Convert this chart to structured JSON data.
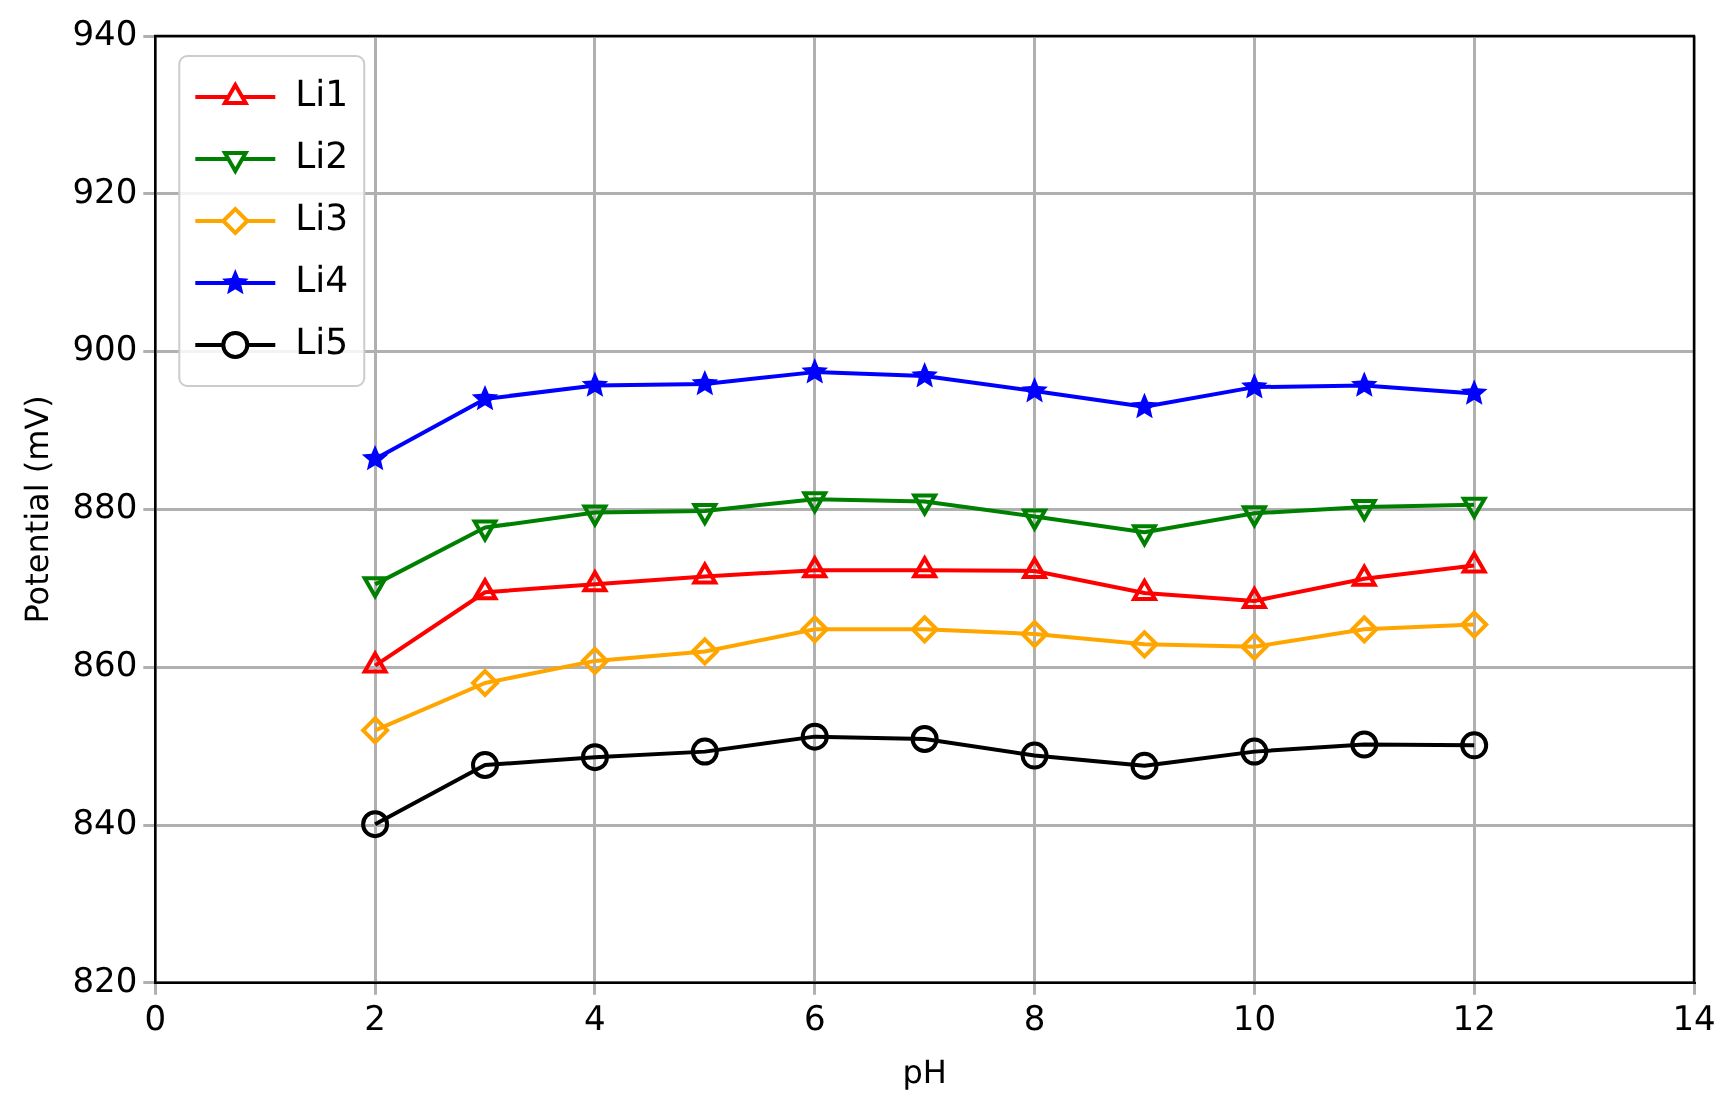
{
  "chart_data": {
    "type": "line",
    "xlabel": "pH",
    "ylabel": "Potential (mV)",
    "x": [
      2,
      3,
      4,
      5,
      6,
      7,
      8,
      9,
      10,
      11,
      12
    ],
    "xlim": [
      0,
      14
    ],
    "xticks": [
      0,
      2,
      4,
      6,
      8,
      10,
      12,
      14
    ],
    "ylim": [
      820,
      940
    ],
    "yticks": [
      820,
      840,
      860,
      880,
      900,
      920,
      940
    ],
    "grid": true,
    "legend": "top left",
    "line_style": "solid",
    "series": [
      {
        "name": "Li1",
        "color": "#ff0000",
        "marker": "triangle",
        "values": [
          860.2,
          869.5,
          870.5,
          871.5,
          872.3,
          872.3,
          872.2,
          869.4,
          868.4,
          871.2,
          872.9
        ]
      },
      {
        "name": "Li2",
        "color": "#008000",
        "marker": "triangle_down",
        "values": [
          870.5,
          877.7,
          879.6,
          879.8,
          881.3,
          881.0,
          879.1,
          877.1,
          879.5,
          880.3,
          880.6
        ]
      },
      {
        "name": "Li3",
        "color": "#ffa500",
        "marker": "diamond",
        "values": [
          852.0,
          858.0,
          860.8,
          862.0,
          864.8,
          864.8,
          864.2,
          862.9,
          862.6,
          864.8,
          865.4
        ]
      },
      {
        "name": "Li4",
        "color": "#0000ff",
        "marker": "star",
        "values": [
          886.4,
          894.0,
          895.7,
          895.9,
          897.4,
          896.9,
          895.0,
          893.0,
          895.5,
          895.7,
          894.7
        ]
      },
      {
        "name": "Li5",
        "color": "#000000",
        "marker": "circle",
        "values": [
          840.1,
          847.6,
          848.6,
          849.3,
          851.2,
          850.9,
          848.8,
          847.5,
          849.3,
          850.2,
          850.1
        ]
      }
    ]
  }
}
